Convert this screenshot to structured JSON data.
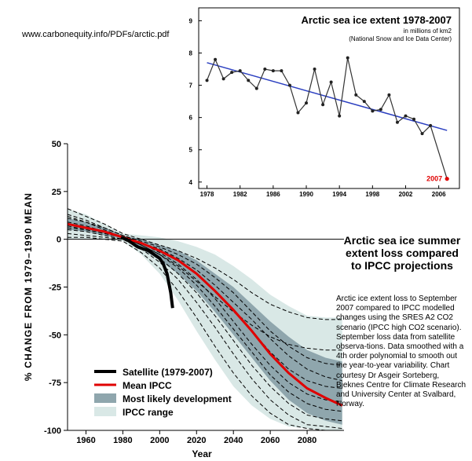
{
  "source_url": "www.carbonequity.info/PDFs/arctic.pdf",
  "caption": {
    "title": "Arctic sea ice summer extent loss compared to IPCC projections",
    "body": "Arctic ice extent loss to September 2007 compared to IPCC modelled changes using the SRES A2 CO2 scenario (IPCC high CO2 scenario). September loss data from satellite observa-tions. Data smoothed with a 4th order polynomial to smooth out the year-to-year variability. Chart courtesy Dr Asgeir Sorteberg, Bjeknes Centre for Climate Research and University Center at Svalbard, Norway."
  },
  "colors": {
    "mean_ipcc": "#e00000",
    "satellite": "#000000",
    "likely_band": "#8fa6ad",
    "ipcc_range_band": "#d9e8e6",
    "inset_trend": "#2b3fc0",
    "inset_2007_label": "#e00000"
  },
  "chart_data": [
    {
      "type": "line",
      "xlabel": "Year",
      "ylabel": "% CHANGE FROM 1979–1990 MEAN",
      "xlim": [
        1950,
        2100
      ],
      "ylim": [
        -100,
        50
      ],
      "x_ticks": [
        1960,
        1980,
        2000,
        2020,
        2040,
        2060,
        2080
      ],
      "y_ticks": [
        50,
        25,
        0,
        -25,
        -50,
        -75,
        -100
      ],
      "legend_position": "bottom-left",
      "legend": [
        {
          "label": "Satellite (1979-2007)",
          "kind": "thick-line",
          "color": "#000000"
        },
        {
          "label": "Mean IPCC",
          "kind": "line",
          "color": "#e00000"
        },
        {
          "label": "Most likely development",
          "kind": "band",
          "color": "#8fa6ad"
        },
        {
          "label": "IPCC range",
          "kind": "band",
          "color": "#d9e8e6"
        }
      ],
      "series": [
        {
          "name": "Mean IPCC",
          "x": [
            1950,
            1960,
            1970,
            1980,
            1990,
            2000,
            2010,
            2020,
            2030,
            2040,
            2050,
            2060,
            2070,
            2080,
            2090,
            2099
          ],
          "values": [
            8,
            6,
            4,
            1,
            -2,
            -6,
            -11,
            -18,
            -27,
            -37,
            -48,
            -60,
            -70,
            -78,
            -83,
            -87
          ]
        },
        {
          "name": "Satellite (1979-2007)",
          "x": [
            1979,
            1982,
            1985,
            1988,
            1991,
            1994,
            1997,
            2000,
            2002,
            2004,
            2006,
            2007
          ],
          "values": [
            1,
            0,
            -2,
            -4,
            -5,
            -6,
            -8,
            -10,
            -13,
            -18,
            -28,
            -36
          ]
        },
        {
          "name": "Most likely development",
          "x": [
            1950,
            1960,
            1970,
            1980,
            1990,
            2000,
            2010,
            2020,
            2030,
            2040,
            2050,
            2060,
            2070,
            2080,
            2090,
            2099
          ],
          "upper": [
            11,
            9,
            6,
            2,
            0,
            -3,
            -6,
            -11,
            -18,
            -25,
            -34,
            -43,
            -51,
            -58,
            -62,
            -64
          ],
          "lower": [
            5,
            4,
            2,
            0,
            -5,
            -11,
            -18,
            -27,
            -38,
            -50,
            -62,
            -74,
            -84,
            -91,
            -95,
            -97
          ]
        },
        {
          "name": "IPCC range",
          "x": [
            1950,
            1960,
            1970,
            1980,
            1990,
            2000,
            2010,
            2020,
            2030,
            2040,
            2050,
            2060,
            2070,
            2080,
            2090,
            2099
          ],
          "upper": [
            16,
            13,
            8,
            3,
            2,
            1,
            -1,
            -4,
            -8,
            -14,
            -21,
            -29,
            -35,
            -40,
            -41,
            -41
          ],
          "lower": [
            0,
            0,
            0,
            -1,
            -8,
            -18,
            -32,
            -48,
            -63,
            -77,
            -87,
            -94,
            -98,
            -99,
            -100,
            -100
          ]
        }
      ],
      "model_runs": [
        [
          16,
          12,
          8,
          3,
          0,
          -3,
          -6,
          -10,
          -15,
          -21,
          -28,
          -34,
          -38,
          -41,
          -42,
          -42
        ],
        [
          13,
          10,
          6,
          2,
          -1,
          -4,
          -8,
          -13,
          -20,
          -28,
          -38,
          -48,
          -56,
          -62,
          -65,
          -66
        ],
        [
          11,
          9,
          6,
          2,
          -2,
          -6,
          -11,
          -18,
          -27,
          -37,
          -48,
          -59,
          -68,
          -74,
          -77,
          -78
        ],
        [
          9,
          7,
          4,
          1,
          -2,
          -7,
          -13,
          -21,
          -31,
          -43,
          -55,
          -66,
          -75,
          -81,
          -84,
          -85
        ],
        [
          7,
          5,
          3,
          1,
          -3,
          -8,
          -15,
          -24,
          -35,
          -47,
          -59,
          -71,
          -80,
          -86,
          -89,
          -90
        ],
        [
          5,
          4,
          2,
          0,
          -4,
          -10,
          -18,
          -28,
          -40,
          -53,
          -66,
          -77,
          -86,
          -92,
          -94,
          -95
        ],
        [
          3,
          2,
          1,
          0,
          -5,
          -12,
          -21,
          -33,
          -46,
          -60,
          -73,
          -84,
          -92,
          -97,
          -98,
          -99
        ],
        [
          1,
          1,
          0,
          -1,
          -7,
          -15,
          -27,
          -41,
          -56,
          -70,
          -82,
          -91,
          -97,
          -99,
          -100,
          -100
        ],
        [
          12,
          9,
          5,
          1,
          -3,
          -8,
          -14,
          -22,
          -30,
          -38,
          -45,
          -51,
          -55,
          -57,
          -58,
          -58
        ],
        [
          6,
          5,
          3,
          1,
          -2,
          -5,
          -10,
          -16,
          -24,
          -33,
          -42,
          -52,
          -61,
          -68,
          -72,
          -74
        ]
      ]
    },
    {
      "type": "line",
      "title": "Arctic sea ice extent 1978-2007",
      "subtitle_lines": [
        "in millions of km2",
        "(National Snow and Ice Data Center)"
      ],
      "xlim": [
        1977,
        2008.5
      ],
      "ylim": [
        3.8,
        9.4
      ],
      "x_ticks": [
        1978,
        1982,
        1986,
        1990,
        1994,
        1998,
        2002,
        2006
      ],
      "y_ticks": [
        9,
        8,
        7,
        6,
        5,
        4
      ],
      "highlight_label": "2007",
      "series": [
        {
          "name": "Observed",
          "x": [
            1978,
            1979,
            1980,
            1981,
            1982,
            1983,
            1984,
            1985,
            1986,
            1987,
            1988,
            1989,
            1990,
            1991,
            1992,
            1993,
            1994,
            1995,
            1996,
            1997,
            1998,
            1999,
            2000,
            2001,
            2002,
            2003,
            2004,
            2005,
            2006,
            2007
          ],
          "values": [
            7.15,
            7.8,
            7.2,
            7.4,
            7.45,
            7.15,
            6.9,
            7.5,
            7.45,
            7.45,
            7.0,
            6.15,
            6.45,
            7.5,
            6.4,
            7.1,
            6.05,
            7.85,
            6.7,
            6.5,
            6.2,
            6.25,
            6.7,
            5.85,
            6.05,
            5.95,
            5.5,
            5.75,
            null,
            4.1
          ]
        },
        {
          "name": "Trend",
          "x": [
            1978,
            2007
          ],
          "values": [
            7.7,
            5.6
          ]
        }
      ]
    }
  ]
}
